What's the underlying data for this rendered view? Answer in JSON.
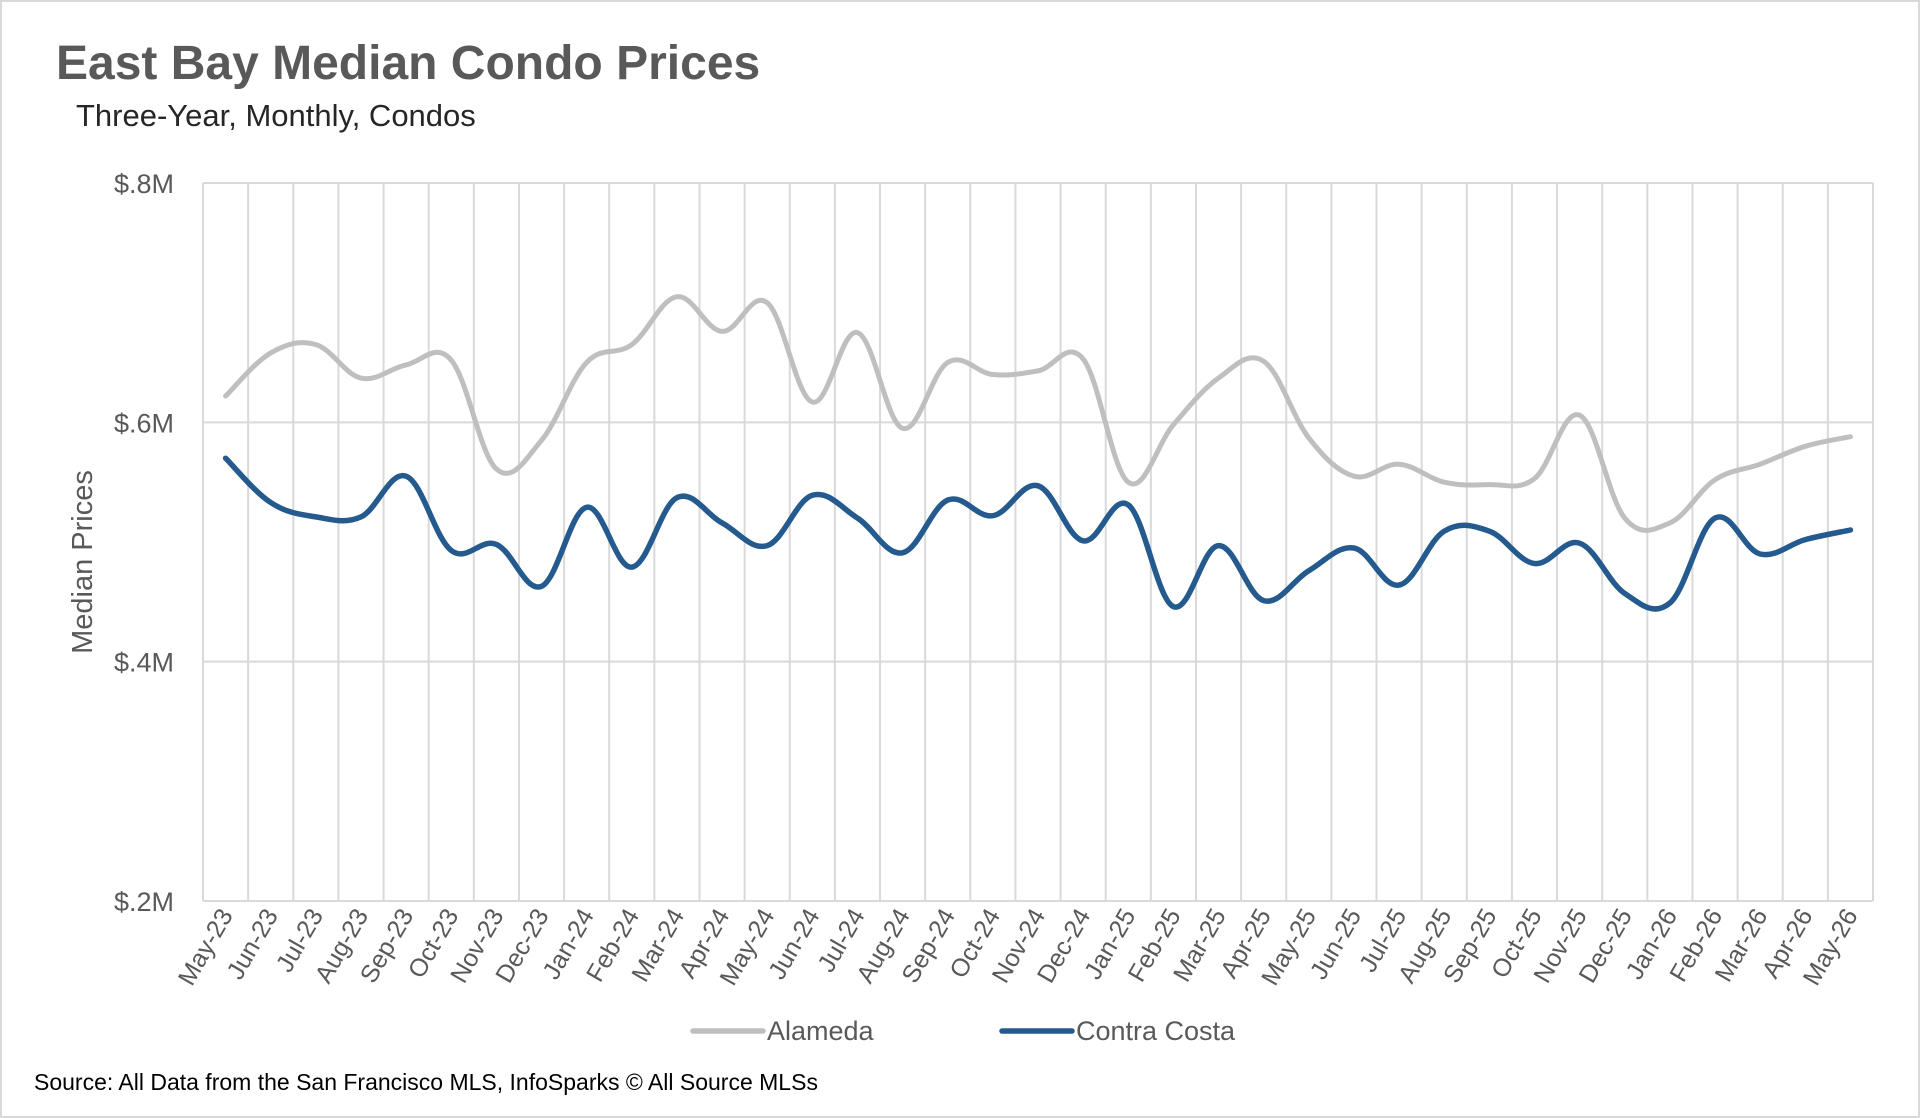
{
  "title": "East Bay Median Condo Prices",
  "subtitle": "Three-Year, Monthly, Condos",
  "source": "Source: All Data from the San Francisco MLS, InfoSparks © All Source MLSs",
  "chart_data": {
    "type": "line",
    "title": "East Bay Median Condo Prices",
    "subtitle": "Three-Year, Monthly, Condos",
    "ylabel": "Median Prices",
    "xlabel": "",
    "ylim": [
      0.2,
      0.8
    ],
    "ytick_values": [
      0.2,
      0.4,
      0.6,
      0.8
    ],
    "ytick_labels": [
      "$.2M",
      "$.4M",
      "$.6M",
      "$.8M"
    ],
    "categories": [
      "May-23",
      "Jun-23",
      "Jul-23",
      "Aug-23",
      "Sep-23",
      "Oct-23",
      "Nov-23",
      "Dec-23",
      "Jan-24",
      "Feb-24",
      "Mar-24",
      "Apr-24",
      "May-24",
      "Jun-24",
      "Jul-24",
      "Aug-24",
      "Sep-24",
      "Oct-24",
      "Nov-24",
      "Dec-24",
      "Jan-25",
      "Feb-25",
      "Mar-25",
      "Apr-25",
      "May-25",
      "Jun-25",
      "Jul-25",
      "Aug-25",
      "Sep-25",
      "Oct-25",
      "Nov-25",
      "Dec-25",
      "Jan-26",
      "Feb-26",
      "Mar-26",
      "Apr-26",
      "May-26"
    ],
    "series": [
      {
        "name": "Alameda",
        "color": "#bfbfbf",
        "values": [
          0.622,
          0.658,
          0.665,
          0.637,
          0.648,
          0.652,
          0.561,
          0.585,
          0.65,
          0.665,
          0.705,
          0.676,
          0.7,
          0.617,
          0.675,
          0.595,
          0.65,
          0.64,
          0.643,
          0.653,
          0.55,
          0.598,
          0.637,
          0.651,
          0.587,
          0.555,
          0.565,
          0.55,
          0.548,
          0.553,
          0.606,
          0.52,
          0.516,
          0.552,
          0.565,
          0.58,
          0.588
        ]
      },
      {
        "name": "Contra Costa",
        "color": "#245a8e",
        "values": [
          0.57,
          0.533,
          0.521,
          0.521,
          0.555,
          0.493,
          0.498,
          0.463,
          0.529,
          0.479,
          0.537,
          0.516,
          0.497,
          0.539,
          0.52,
          0.491,
          0.535,
          0.522,
          0.547,
          0.501,
          0.531,
          0.446,
          0.497,
          0.451,
          0.476,
          0.495,
          0.464,
          0.509,
          0.509,
          0.482,
          0.499,
          0.457,
          0.449,
          0.52,
          0.49,
          0.502,
          0.51
        ]
      }
    ],
    "legend": "bottom",
    "grid": {
      "horizontal": true,
      "vertical": true
    }
  }
}
